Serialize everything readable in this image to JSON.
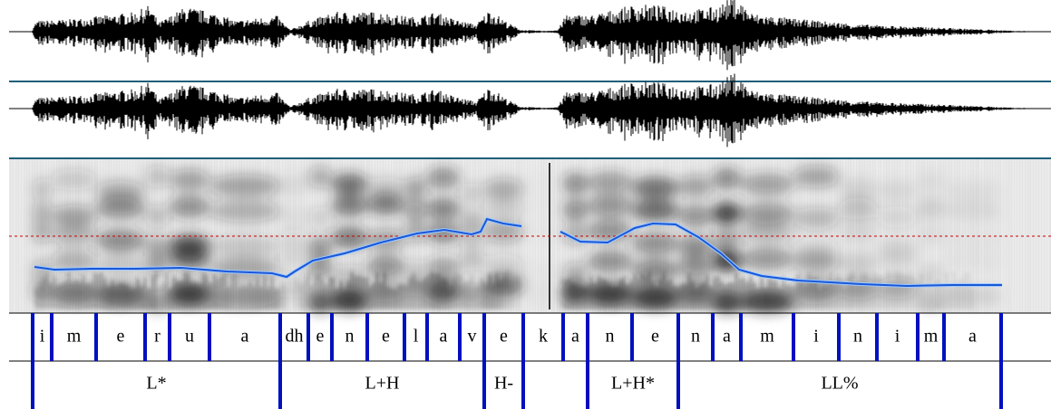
{
  "tiers": [
    {
      "intervals": [
        "i",
        "m",
        "e",
        "r",
        "u",
        "a",
        "dh",
        "e",
        "n",
        "e",
        "l",
        "a",
        "v",
        "e",
        "k",
        "a",
        "n",
        "e",
        "n",
        "a",
        "m",
        "i",
        "n",
        "i",
        "m",
        "a"
      ]
    },
    {
      "intervals": [
        "L*",
        "L+H",
        "H-",
        "L+H*",
        "LL%"
      ]
    }
  ]
}
